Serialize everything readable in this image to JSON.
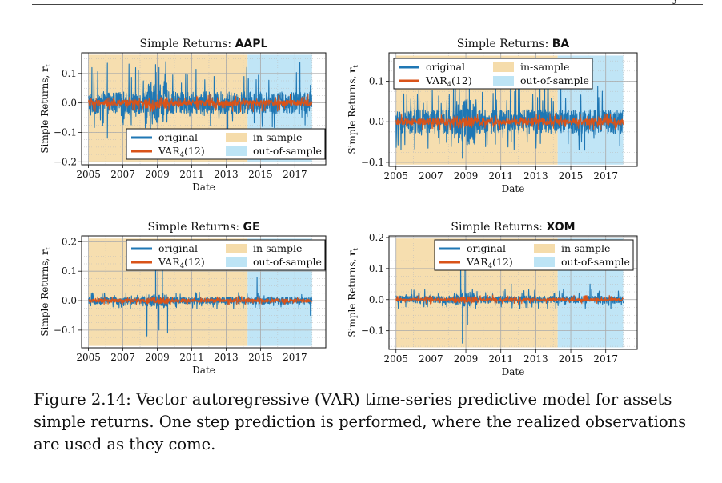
{
  "header_fragment": "y",
  "caption": {
    "label": "Figure 2.14:",
    "text": "Vector autoregressive (VAR) time-series predictive model for assets simple returns. One step prediction is performed, where the realized observations are used as they come."
  },
  "legend_labels": {
    "original": "original",
    "var_prefix": "VAR",
    "var_sub": "4",
    "var_suffix": "(12)",
    "in_sample": "in-sample",
    "out_of_sample": "out-of-sample"
  },
  "colors": {
    "original": "#1f77b4",
    "prediction": "#d95319",
    "in_sample": "#f5dcab",
    "out_of_sample": "#bde4f5"
  },
  "chart_data": [
    {
      "type": "line",
      "title_prefix": "Simple Returns: ",
      "ticker": "AAPL",
      "xlabel": "Date",
      "ylabel": "Simple Returns, ",
      "ylabel_symbol": "r",
      "ylabel_sub": "t",
      "x_range": [
        2004.6,
        2018.8
      ],
      "xticks": [
        2005,
        2007,
        2009,
        2011,
        2013,
        2015,
        2017
      ],
      "ylim": [
        -0.21,
        0.17
      ],
      "yticks": [
        -0.2,
        -0.1,
        0.0,
        0.1
      ],
      "ytick_labels": [
        "−0.2",
        "−0.1",
        "0.0",
        "0.1"
      ],
      "in_sample": [
        2005,
        2014.25
      ],
      "out_of_sample": [
        2014.25,
        2018
      ],
      "legend_position": "lower-center",
      "grid": true,
      "series": [
        {
          "name": "original",
          "kind": "original",
          "low": -0.085,
          "high": 0.14,
          "spread": 0.038,
          "spikes": [
            [
              2005.2,
              0.12
            ],
            [
              2006.1,
              -0.12
            ],
            [
              2007.9,
              0.11
            ],
            [
              2008.6,
              -0.17
            ],
            [
              2008.9,
              0.13
            ],
            [
              2009.1,
              0.12
            ],
            [
              2012.3,
              0.09
            ],
            [
              2013.1,
              -0.12
            ],
            [
              2014.3,
              0.08
            ],
            [
              2017.9,
              0.06
            ]
          ]
        },
        {
          "name": "VAR4(12)",
          "kind": "prediction",
          "low": -0.03,
          "high": 0.03,
          "spread": 0.01
        }
      ]
    },
    {
      "type": "line",
      "title_prefix": "Simple Returns: ",
      "ticker": "BA",
      "xlabel": "Date",
      "ylabel": "Simple Returns, ",
      "ylabel_symbol": "r",
      "ylabel_sub": "t",
      "x_range": [
        2004.6,
        2018.8
      ],
      "xticks": [
        2005,
        2007,
        2009,
        2011,
        2013,
        2015,
        2017
      ],
      "ylim": [
        -0.11,
        0.17
      ],
      "yticks": [
        -0.1,
        0.0,
        0.1
      ],
      "ytick_labels": [
        "−0.1",
        "0.0",
        "0.1"
      ],
      "in_sample": [
        2005,
        2014.25
      ],
      "out_of_sample": [
        2014.25,
        2018
      ],
      "legend_position": "upper-center",
      "grid": true,
      "series": [
        {
          "name": "original",
          "kind": "original",
          "low": -0.07,
          "high": 0.1,
          "spread": 0.03,
          "spikes": [
            [
              2008.4,
              0.08
            ],
            [
              2008.8,
              -0.09
            ],
            [
              2009.2,
              0.09
            ],
            [
              2011.6,
              -0.05
            ],
            [
              2013.1,
              0.06
            ],
            [
              2015.8,
              -0.07
            ],
            [
              2016.6,
              0.06
            ],
            [
              2017.8,
              -0.06
            ]
          ]
        },
        {
          "name": "VAR4(12)",
          "kind": "prediction",
          "low": -0.02,
          "high": 0.02,
          "spread": 0.008
        }
      ]
    },
    {
      "type": "line",
      "title_prefix": "Simple Returns: ",
      "ticker": "GE",
      "xlabel": "Date",
      "ylabel": "Simple Returns, ",
      "ylabel_symbol": "r",
      "ylabel_sub": "t",
      "x_range": [
        2004.6,
        2018.8
      ],
      "xticks": [
        2005,
        2007,
        2009,
        2011,
        2013,
        2015,
        2017
      ],
      "ylim": [
        -0.16,
        0.22
      ],
      "yticks": [
        -0.1,
        0.0,
        0.1,
        0.2
      ],
      "ytick_labels": [
        "−0.1",
        "0.0",
        "0.1",
        "0.2"
      ],
      "in_sample": [
        2005,
        2014.25
      ],
      "out_of_sample": [
        2014.25,
        2018
      ],
      "legend_position": "upper-right",
      "grid": true,
      "series": [
        {
          "name": "original",
          "kind": "original",
          "low": -0.03,
          "high": 0.03,
          "spread": 0.012,
          "spikes": [
            [
              2008.4,
              -0.12
            ],
            [
              2008.9,
              0.19
            ],
            [
              2009.1,
              -0.1
            ],
            [
              2009.3,
              0.14
            ],
            [
              2009.6,
              -0.11
            ],
            [
              2014.8,
              0.08
            ],
            [
              2017.9,
              -0.05
            ]
          ]
        },
        {
          "name": "VAR4(12)",
          "kind": "prediction",
          "low": -0.015,
          "high": 0.015,
          "spread": 0.006
        }
      ]
    },
    {
      "type": "line",
      "title_prefix": "Simple Returns: ",
      "ticker": "XOM",
      "xlabel": "Date",
      "ylabel": "Simple Returns, ",
      "ylabel_symbol": "r",
      "ylabel_sub": "t",
      "x_range": [
        2004.6,
        2018.8
      ],
      "xticks": [
        2005,
        2007,
        2009,
        2011,
        2013,
        2015,
        2017
      ],
      "ylim": [
        -0.16,
        0.205
      ],
      "yticks": [
        -0.1,
        0.0,
        0.1,
        0.2
      ],
      "ytick_labels": [
        "−0.1",
        "0.0",
        "0.1",
        "0.2"
      ],
      "in_sample": [
        2005,
        2014.25
      ],
      "out_of_sample": [
        2014.25,
        2018
      ],
      "legend_position": "upper-right",
      "grid": true,
      "series": [
        {
          "name": "original",
          "kind": "original",
          "low": -0.03,
          "high": 0.035,
          "spread": 0.012,
          "spikes": [
            [
              2008.7,
              0.17
            ],
            [
              2008.8,
              -0.14
            ],
            [
              2008.95,
              0.1
            ],
            [
              2009.1,
              -0.08
            ],
            [
              2011.6,
              0.05
            ],
            [
              2016.1,
              0.05
            ]
          ]
        },
        {
          "name": "VAR4(12)",
          "kind": "prediction",
          "low": -0.015,
          "high": 0.015,
          "spread": 0.005
        }
      ]
    }
  ]
}
